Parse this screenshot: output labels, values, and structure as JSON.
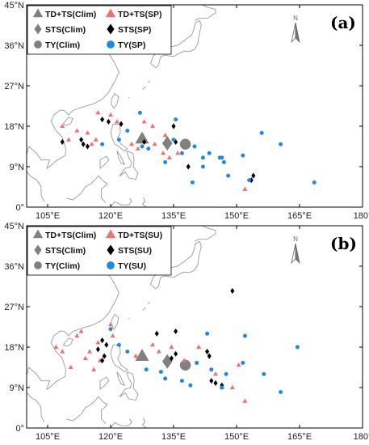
{
  "colors": {
    "clim": "#808080",
    "sp_td": "#f07070",
    "sp_sts": "#000000",
    "sp_ty": "#1e88e5",
    "land": "#9a9a9a"
  },
  "icons": {
    "north_arrow": "north-arrow-icon"
  },
  "chart_data": [
    {
      "type": "scatter",
      "panel_label": "(a)",
      "x_ticks": [
        "105°E",
        "120°E",
        "135°E",
        "150°E",
        "165°E",
        "180°"
      ],
      "y_ticks": [
        "0°",
        "9°N",
        "18°N",
        "27°N",
        "36°N",
        "45°N"
      ],
      "xlim": [
        100,
        180
      ],
      "ylim": [
        0,
        45
      ],
      "north_label": "N",
      "legend": [
        {
          "label": "TD+TS(Clim)",
          "marker": "triangle",
          "color": "#808080"
        },
        {
          "label": "TD+TS(SP)",
          "marker": "triangle",
          "color": "#f07070"
        },
        {
          "label": "STS(Clim)",
          "marker": "diamond",
          "color": "#808080"
        },
        {
          "label": "STS(SP)",
          "marker": "diamond",
          "color": "#000000"
        },
        {
          "label": "TY(Clim)",
          "marker": "circle",
          "color": "#808080"
        },
        {
          "label": "TY(SP)",
          "marker": "circle",
          "color": "#1e88e5"
        }
      ],
      "series": [
        {
          "legend_index": 0,
          "points": [
            [
              127.5,
              15.2
            ]
          ]
        },
        {
          "legend_index": 2,
          "points": [
            [
              133.5,
              14.2
            ]
          ]
        },
        {
          "legend_index": 4,
          "points": [
            [
              137.8,
              14.0
            ]
          ]
        },
        {
          "legend_index": 1,
          "points": [
            [
              117,
              21
            ],
            [
              120,
              20.5
            ],
            [
              121.5,
              19
            ],
            [
              108.5,
              18
            ],
            [
              112,
              17
            ],
            [
              114.5,
              16.5
            ],
            [
              116.5,
              15
            ],
            [
              110,
              15
            ],
            [
              115.5,
              14
            ],
            [
              125,
              14
            ],
            [
              126.5,
              13
            ],
            [
              128,
              19
            ],
            [
              130,
              18
            ],
            [
              132.5,
              12
            ],
            [
              134,
              11
            ],
            [
              133,
              16
            ],
            [
              136,
              12
            ],
            [
              130.5,
              14
            ],
            [
              152,
              4
            ]
          ]
        },
        {
          "legend_index": 3,
          "points": [
            [
              118,
              19.5
            ],
            [
              119.5,
              19
            ],
            [
              122.5,
              18.5
            ],
            [
              108.5,
              14.5
            ],
            [
              113,
              15
            ],
            [
              113.5,
              14
            ],
            [
              114.5,
              13.5
            ],
            [
              135,
              18
            ],
            [
              135.5,
              14.5
            ],
            [
              128,
              14.5
            ],
            [
              138.5,
              9
            ],
            [
              153.5,
              6
            ],
            [
              154,
              7
            ]
          ]
        },
        {
          "legend_index": 5,
          "points": [
            [
              127,
              21
            ],
            [
              124,
              17
            ],
            [
              122,
              15
            ],
            [
              118,
              14
            ],
            [
              129,
              13
            ],
            [
              127.5,
              13.5
            ],
            [
              135.5,
              19.5
            ],
            [
              135,
              15
            ],
            [
              133,
              10
            ],
            [
              137,
              12
            ],
            [
              139.5,
              5.5
            ],
            [
              140,
              13.5
            ],
            [
              142,
              11
            ],
            [
              143.5,
              12
            ],
            [
              146.5,
              11
            ],
            [
              147,
              10
            ],
            [
              148,
              7
            ],
            [
              151.5,
              11.5
            ],
            [
              153,
              6
            ],
            [
              156,
              16.5
            ],
            [
              160.5,
              14
            ],
            [
              168.5,
              5.5
            ],
            [
              146,
              11
            ],
            [
              142,
              9
            ]
          ]
        }
      ]
    },
    {
      "type": "scatter",
      "panel_label": "(b)",
      "x_ticks": [
        "105°E",
        "120°E",
        "135°E",
        "150°E",
        "165°E",
        "180°"
      ],
      "y_ticks": [
        "0°",
        "9°N",
        "18°N",
        "27°N",
        "36°N",
        "45°N"
      ],
      "xlim": [
        100,
        180
      ],
      "ylim": [
        0,
        45
      ],
      "north_label": "N",
      "legend": [
        {
          "label": "TD+TS(Clim)",
          "marker": "triangle",
          "color": "#808080"
        },
        {
          "label": "TD+TS(SU)",
          "marker": "triangle",
          "color": "#f07070"
        },
        {
          "label": "STS(Clim)",
          "marker": "diamond",
          "color": "#808080"
        },
        {
          "label": "STS(SU)",
          "marker": "diamond",
          "color": "#000000"
        },
        {
          "label": "TY(Clim)",
          "marker": "circle",
          "color": "#808080"
        },
        {
          "label": "TY(SU)",
          "marker": "circle",
          "color": "#1e88e5"
        }
      ],
      "series": [
        {
          "legend_index": 0,
          "points": [
            [
              127.5,
              16.0
            ]
          ]
        },
        {
          "legend_index": 2,
          "points": [
            [
              133.5,
              14.8
            ]
          ]
        },
        {
          "legend_index": 4,
          "points": [
            [
              137.8,
              14.0
            ]
          ]
        },
        {
          "legend_index": 1,
          "points": [
            [
              113,
              21.5
            ],
            [
              112,
              20.5
            ],
            [
              120,
              23
            ],
            [
              120.5,
              20.5
            ],
            [
              117,
              19
            ],
            [
              107,
              18
            ],
            [
              108.5,
              17
            ],
            [
              115,
              17
            ],
            [
              114,
              15.5
            ],
            [
              117.5,
              15
            ],
            [
              110.5,
              13.5
            ],
            [
              116,
              13
            ],
            [
              126,
              16
            ],
            [
              130,
              18.5
            ],
            [
              131.5,
              17
            ],
            [
              134.5,
              18
            ],
            [
              137.5,
              15
            ],
            [
              141,
              18
            ],
            [
              145,
              12
            ],
            [
              146.5,
              9
            ],
            [
              149,
              9
            ],
            [
              150.5,
              14
            ],
            [
              152,
              6
            ]
          ]
        },
        {
          "legend_index": 3,
          "points": [
            [
              118,
              19.5
            ],
            [
              119,
              18.5
            ],
            [
              117,
              17.5
            ],
            [
              118.5,
              16
            ],
            [
              118,
              15
            ],
            [
              134.5,
              15.5
            ],
            [
              135.5,
              16.5
            ],
            [
              135.5,
              21.5
            ],
            [
              131,
              21
            ],
            [
              143,
              17
            ],
            [
              143.5,
              16
            ],
            [
              149,
              30.5
            ],
            [
              144,
              10.5
            ],
            [
              145,
              10
            ],
            [
              146.5,
              9.5
            ]
          ]
        },
        {
          "legend_index": 5,
          "points": [
            [
              120,
              22
            ],
            [
              122,
              18.5
            ],
            [
              124,
              17
            ],
            [
              128.5,
              13
            ],
            [
              132,
              12.5
            ],
            [
              133,
              11
            ],
            [
              137,
              10.5
            ],
            [
              139,
              9.5
            ],
            [
              140.5,
              14.5
            ],
            [
              144,
              13
            ],
            [
              147.5,
              12
            ],
            [
              146.5,
              9
            ],
            [
              152,
              20.5
            ],
            [
              151.5,
              14.5
            ],
            [
              156.5,
              12
            ],
            [
              160.5,
              8
            ],
            [
              164.5,
              18
            ],
            [
              143,
              21
            ]
          ]
        }
      ]
    }
  ]
}
